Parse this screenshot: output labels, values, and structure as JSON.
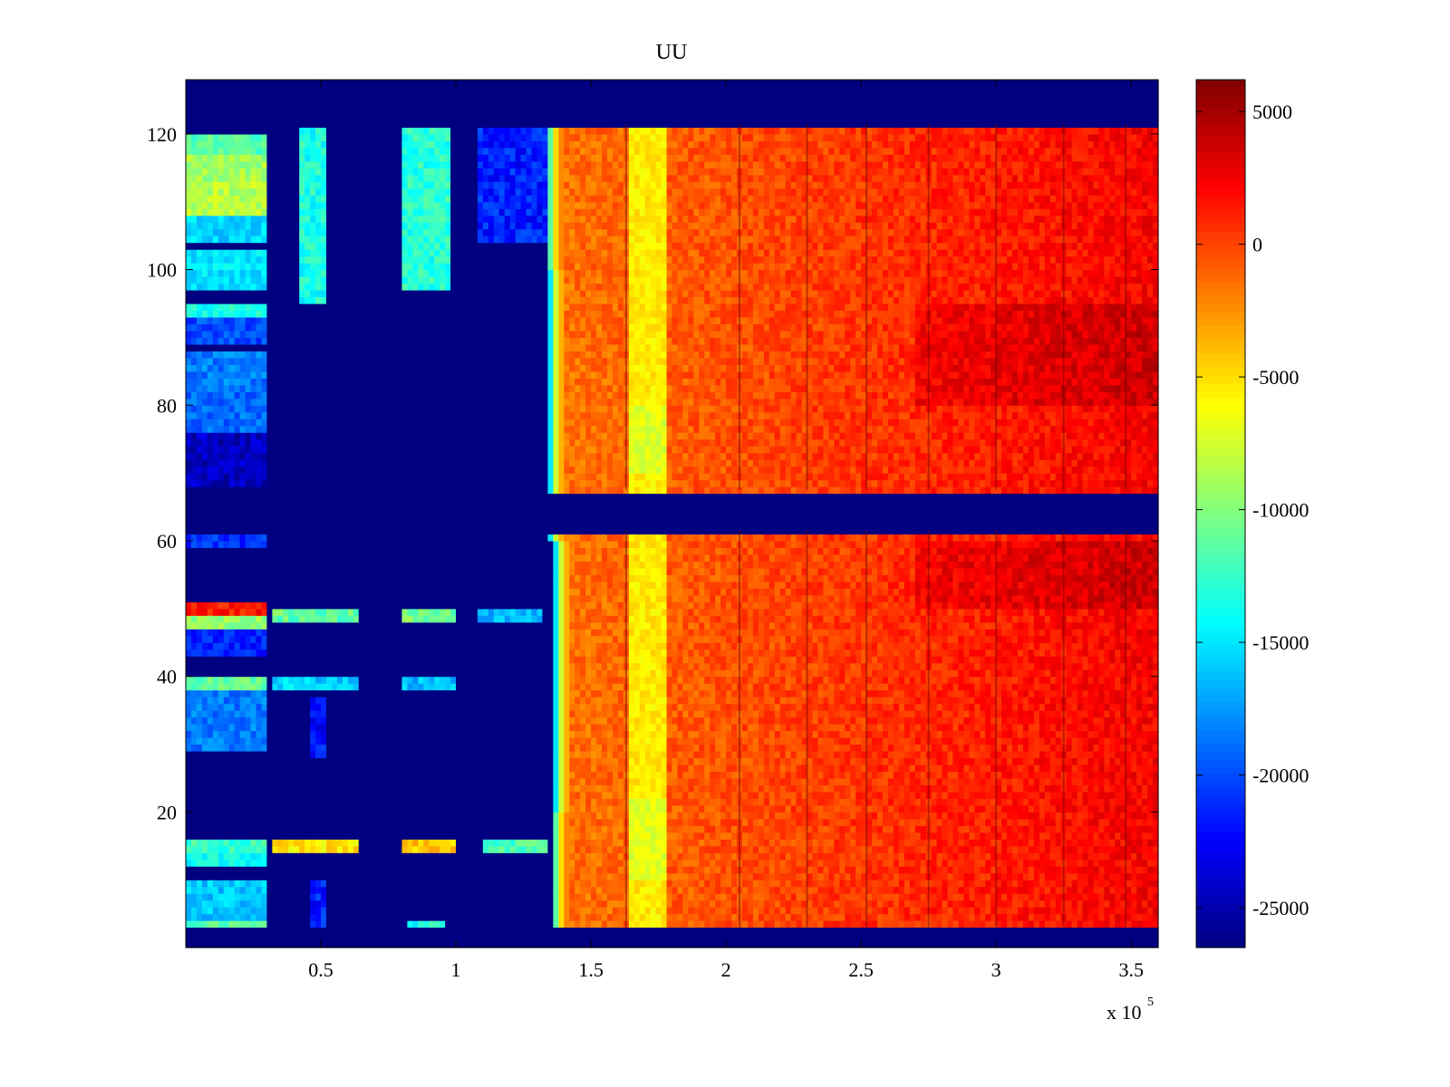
{
  "chart_data": {
    "type": "heatmap",
    "title": "UU",
    "xlabel": "",
    "ylabel": "",
    "x_multiplier_label": "x 10",
    "x_multiplier_exponent": "5",
    "xlim": [
      0,
      3.6
    ],
    "ylim": [
      0,
      128
    ],
    "x_ticks": [
      0.5,
      1,
      1.5,
      2,
      2.5,
      3,
      3.5
    ],
    "x_tick_labels": [
      "0.5",
      "1",
      "1.5",
      "2",
      "2.5",
      "3",
      "3.5"
    ],
    "y_ticks": [
      20,
      40,
      60,
      80,
      100,
      120
    ],
    "y_tick_labels": [
      "20",
      "40",
      "60",
      "80",
      "100",
      "120"
    ],
    "colormap": "jet",
    "clim": [
      -26500,
      6200
    ],
    "colorbar_ticks": [
      5000,
      0,
      -5000,
      -10000,
      -15000,
      -20000,
      -25000
    ],
    "colorbar_tick_labels": [
      "5000",
      "0",
      "-5000",
      "-10000",
      "-15000",
      "-20000",
      "-25000"
    ],
    "regions": {
      "blank_rows": [
        [
          0,
          3
        ],
        [
          61.5,
          67.5
        ],
        [
          121.5,
          128
        ]
      ],
      "transition_x": [
        1.39,
        1.4,
        1.38,
        1.37
      ],
      "bright_band_x": [
        1.65,
        1.79
      ],
      "bright_band_value": -5500,
      "hot_value": 2500,
      "low_value": -26500
    }
  }
}
